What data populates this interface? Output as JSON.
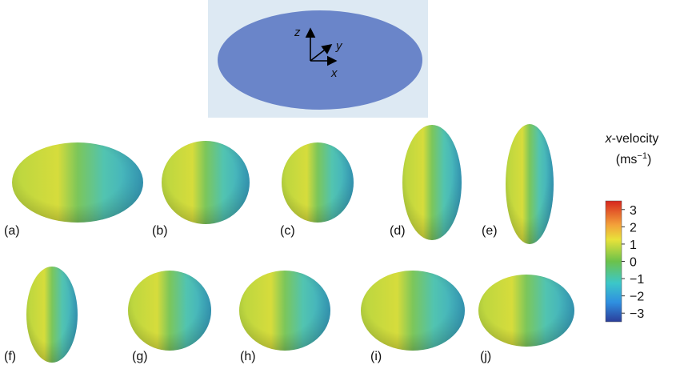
{
  "inset": {
    "axes": [
      "z",
      "y",
      "x"
    ]
  },
  "panels": [
    {
      "label": "(a)"
    },
    {
      "label": "(b)"
    },
    {
      "label": "(c)"
    },
    {
      "label": "(d)"
    },
    {
      "label": "(e)"
    },
    {
      "label": "(f)"
    },
    {
      "label": "(g)"
    },
    {
      "label": "(h)"
    },
    {
      "label": "(i)"
    },
    {
      "label": "(j)"
    }
  ],
  "colorbar": {
    "title_var": "x",
    "title": "-velocity",
    "unit": "(ms",
    "unit_exp": "−1",
    "unit_close": ")",
    "lim": [
      -3.5,
      3.5
    ],
    "ticks": [
      3,
      2,
      1,
      0,
      {
        "value": -1,
        "label": "−1"
      },
      {
        "value": -2,
        "label": "−2"
      },
      {
        "value": -3,
        "label": "−3"
      }
    ]
  }
}
